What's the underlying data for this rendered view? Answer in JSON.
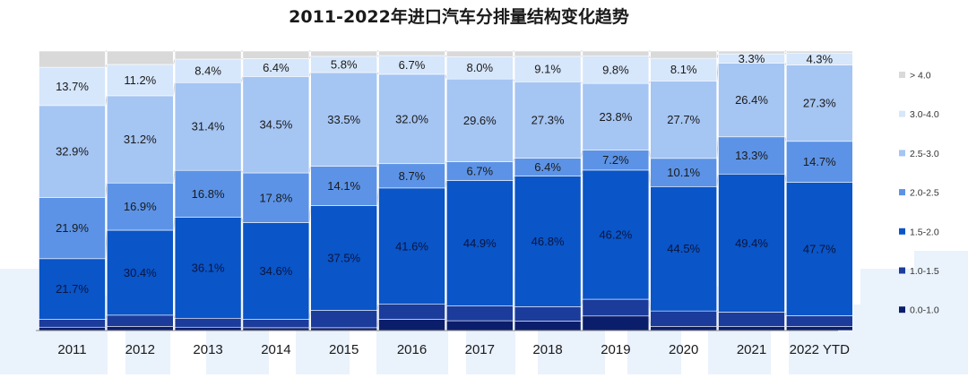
{
  "chart_data": {
    "type": "bar",
    "stacked": true,
    "percent": true,
    "title": "2011-2022年进口汽车分排量结构变化趋势",
    "categories": [
      "2011",
      "2012",
      "2013",
      "2014",
      "2015",
      "2016",
      "2017",
      "2018",
      "2019",
      "2020",
      "2021",
      "2022 YTD"
    ],
    "series": [
      {
        "name": "0.0-1.0",
        "color": "#0b1e6b",
        "values": [
          1.2,
          1.5,
          1.2,
          1.0,
          1.0,
          4.0,
          3.5,
          3.4,
          5.2,
          1.5,
          1.4,
          1.4
        ]
      },
      {
        "name": "1.0-1.5",
        "color": "#1c3c9c",
        "values": [
          2.8,
          4.0,
          3.2,
          3.0,
          6.2,
          5.4,
          5.3,
          5.1,
          6.0,
          5.5,
          5.2,
          3.9
        ]
      },
      {
        "name": "1.5-2.0",
        "color": "#0a55c7",
        "values": [
          21.7,
          30.4,
          36.1,
          34.6,
          37.5,
          41.6,
          44.9,
          46.8,
          46.2,
          44.5,
          49.4,
          47.7
        ]
      },
      {
        "name": "2.0-2.5",
        "color": "#5c93e6",
        "values": [
          21.9,
          16.9,
          16.8,
          17.8,
          14.1,
          8.7,
          6.7,
          6.4,
          7.2,
          10.1,
          13.3,
          14.7
        ]
      },
      {
        "name": "2.5-3.0",
        "color": "#a5c5f3",
        "values": [
          32.9,
          31.2,
          31.4,
          34.5,
          33.5,
          32.0,
          29.6,
          27.3,
          23.8,
          27.7,
          26.4,
          27.3
        ]
      },
      {
        "name": "3.0-4.0",
        "color": "#d6e6fb",
        "values": [
          13.7,
          11.2,
          8.4,
          6.4,
          5.8,
          6.7,
          8.0,
          9.1,
          9.8,
          8.1,
          3.3,
          4.3
        ]
      },
      {
        "name": "> 4.0",
        "color": "#d9d9d9",
        "values": [
          5.8,
          4.8,
          2.9,
          2.7,
          1.9,
          1.6,
          2.0,
          1.9,
          1.8,
          2.6,
          1.0,
          0.7
        ]
      }
    ],
    "labels": [
      [
        "",
        "",
        "21.7%",
        "21.9%",
        "32.9%",
        "13.7%",
        ""
      ],
      [
        "",
        "",
        "30.4%",
        "16.9%",
        "31.2%",
        "11.2%",
        ""
      ],
      [
        "",
        "",
        "36.1%",
        "16.8%",
        "31.4%",
        "8.4%",
        ""
      ],
      [
        "",
        "",
        "34.6%",
        "17.8%",
        "34.5%",
        "6.4%",
        ""
      ],
      [
        "",
        "",
        "37.5%",
        "14.1%",
        "33.5%",
        "5.8%",
        ""
      ],
      [
        "",
        "",
        "41.6%",
        "8.7%",
        "32.0%",
        "6.7%",
        ""
      ],
      [
        "",
        "",
        "44.9%",
        "6.7%",
        "29.6%",
        "8.0%",
        ""
      ],
      [
        "",
        "",
        "46.8%",
        "6.4%",
        "27.3%",
        "9.1%",
        ""
      ],
      [
        "",
        "",
        "46.2%",
        "7.2%",
        "23.8%",
        "9.8%",
        ""
      ],
      [
        "",
        "",
        "44.5%",
        "10.1%",
        "27.7%",
        "8.1%",
        ""
      ],
      [
        "",
        "",
        "49.4%",
        "13.3%",
        "26.4%",
        "3.3%",
        ""
      ],
      [
        "",
        "",
        "47.7%",
        "14.7%",
        "27.3%",
        "4.3%",
        ""
      ]
    ],
    "legend_order": [
      "> 4.0",
      "3.0-4.0",
      "2.5-3.0",
      "2.0-2.5",
      "1.5-2.0",
      "1.0-1.5",
      "0.0-1.0"
    ],
    "legend_position": "right",
    "grid": false
  }
}
